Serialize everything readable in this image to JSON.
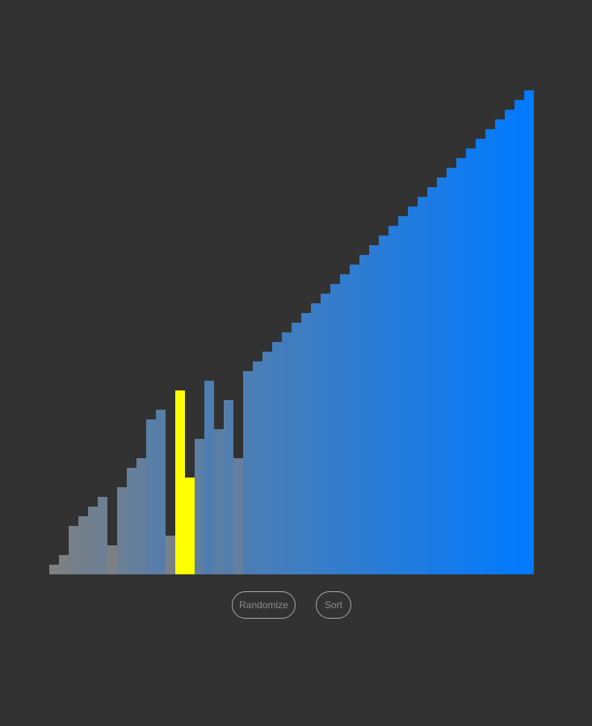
{
  "visualizer": {
    "max_value": 50,
    "comparing_indices": [
      13,
      14
    ],
    "colors": {
      "background": "#323232",
      "unsorted_start": "#808080",
      "sorted_end": "#007aff",
      "highlight": "#ffff00"
    },
    "values": [
      1,
      2,
      5,
      6,
      7,
      8,
      3,
      9,
      11,
      12,
      16,
      17,
      4,
      19,
      10,
      14,
      20,
      15,
      18,
      12,
      21,
      22,
      23,
      24,
      25,
      26,
      27,
      28,
      29,
      30,
      31,
      32,
      33,
      34,
      35,
      36,
      37,
      38,
      39,
      40,
      41,
      42,
      43,
      44,
      45,
      46,
      47,
      48,
      49,
      50
    ]
  },
  "controls": {
    "randomize_label": "Randomize",
    "sort_label": "Sort"
  }
}
